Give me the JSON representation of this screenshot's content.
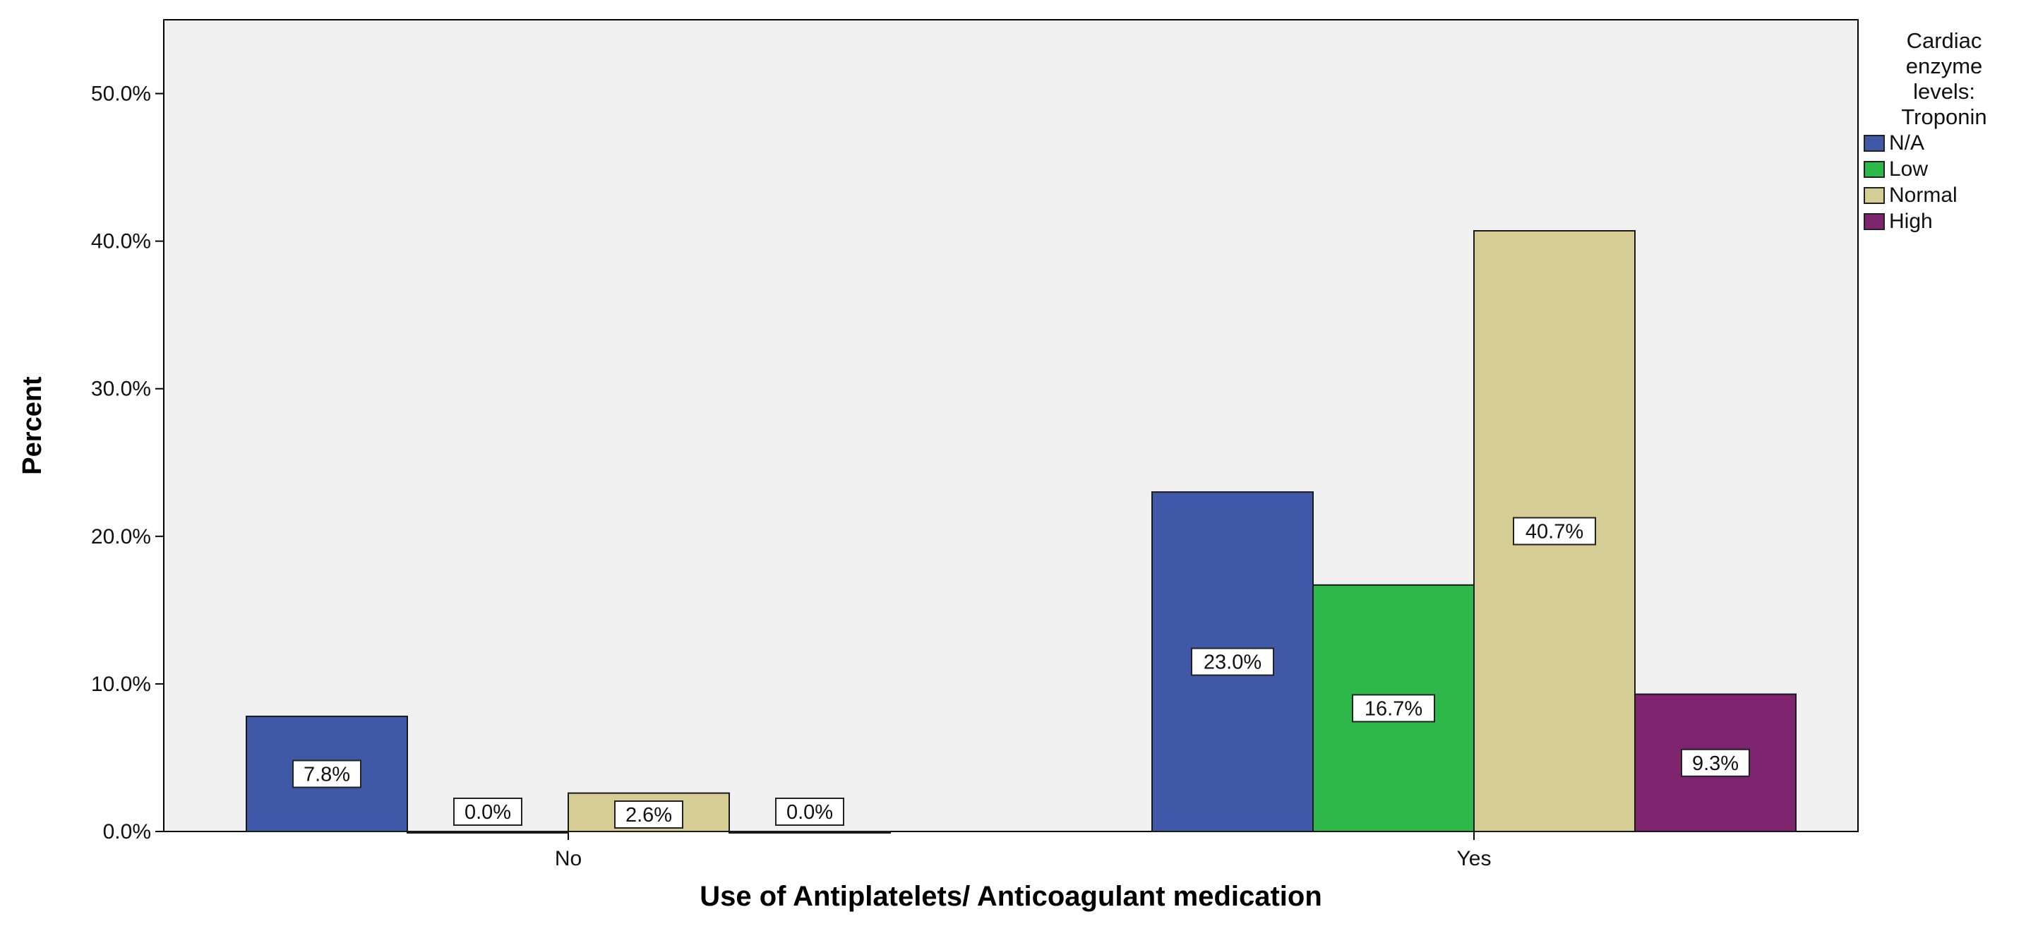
{
  "chart_data": {
    "type": "bar",
    "categories": [
      "No",
      "Yes"
    ],
    "series": [
      {
        "name": "N/A",
        "color": "#3f58a8",
        "values": [
          7.8,
          23.0
        ],
        "labels": [
          "7.8%",
          "23.0%"
        ]
      },
      {
        "name": "Low",
        "color": "#2fb84a",
        "values": [
          0.0,
          16.7
        ],
        "labels": [
          "0.0%",
          "16.7%"
        ]
      },
      {
        "name": "Normal",
        "color": "#d6cd95",
        "values": [
          2.6,
          40.7
        ],
        "labels": [
          "2.6%",
          "40.7%"
        ]
      },
      {
        "name": "High",
        "color": "#7f2570",
        "values": [
          0.0,
          9.3
        ],
        "labels": [
          "0.0%",
          "9.3%"
        ]
      }
    ],
    "xlabel": "Use of Antiplatelets/ Anticoagulant medication",
    "ylabel": "Percent",
    "ylim": [
      0,
      55
    ],
    "yticks": [
      0,
      10,
      20,
      30,
      40,
      50
    ],
    "ytick_labels": [
      "0.0%",
      "10.0%",
      "20.0%",
      "30.0%",
      "40.0%",
      "50.0%"
    ],
    "grid": false,
    "legend": {
      "title_lines": [
        "Cardiac",
        "enzyme",
        "levels:",
        "Troponin"
      ],
      "placement": "right"
    },
    "colors": {
      "plot_background": "#f0f0f0",
      "axis": "#000000"
    }
  }
}
